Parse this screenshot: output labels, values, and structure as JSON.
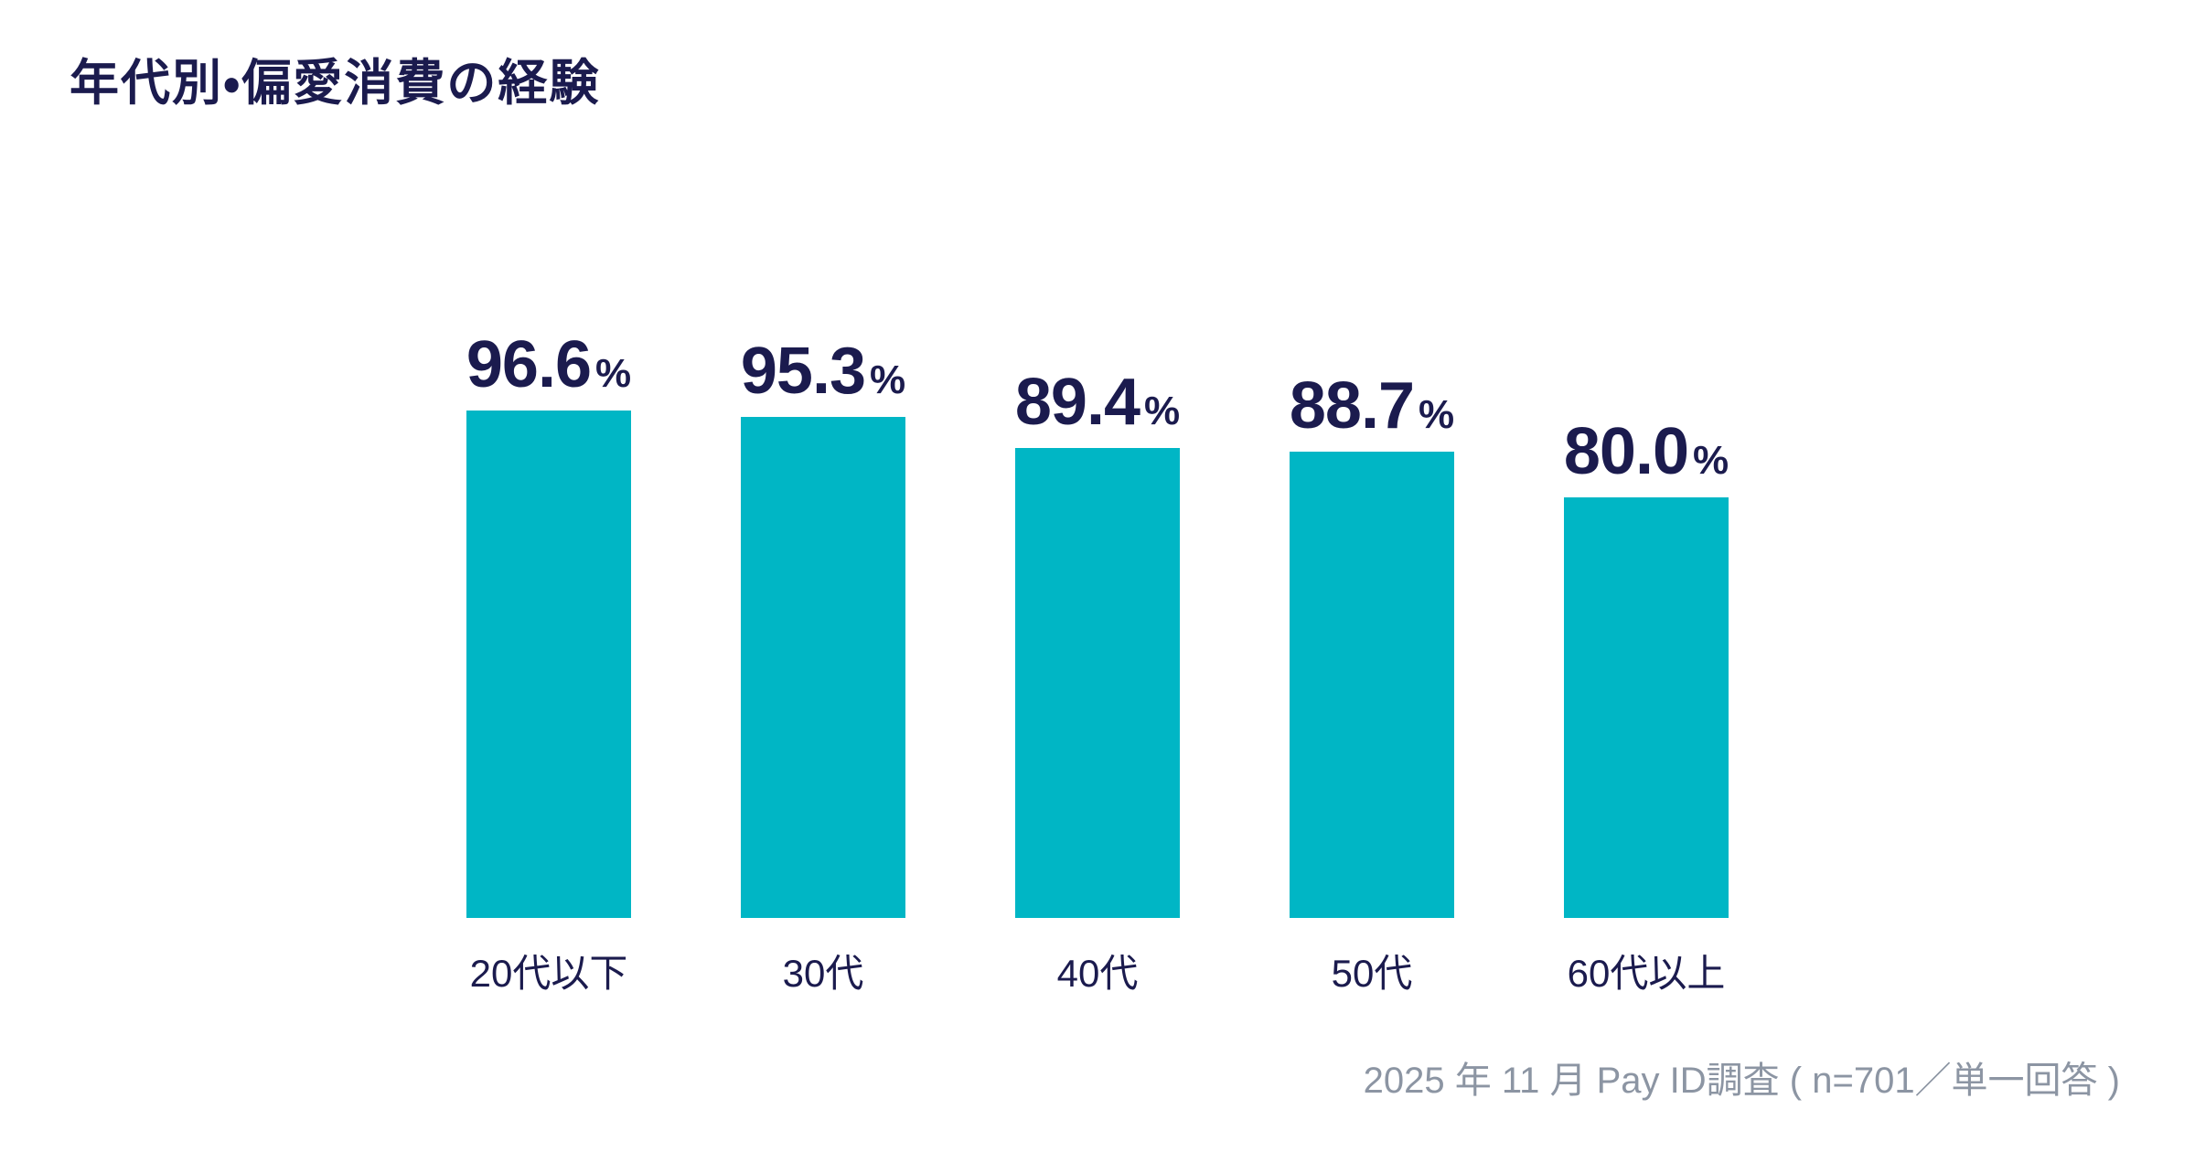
{
  "page": {
    "background": "#ffffff"
  },
  "colors": {
    "bar_teal": "#00b6c5",
    "text_navy": "#1b1b4e",
    "footer_gray": "#8c95a3",
    "background": "#ffffff"
  },
  "chart_data": {
    "type": "bar",
    "title": "年代別・偏愛消費の経験",
    "categories": [
      "20代以下",
      "30代",
      "40代",
      "50代",
      "60代以上"
    ],
    "values": [
      96.6,
      95.3,
      89.4,
      88.7,
      80.0
    ],
    "value_labels": [
      "96.6",
      "95.3",
      "89.4",
      "88.7",
      "80.0"
    ],
    "unit": "%",
    "xlabel": "",
    "ylabel": "",
    "ylim": [
      0,
      100
    ],
    "grid": false,
    "legend": "none",
    "bar_color": "#00b6c5",
    "value_label_color": "#1b1b4e",
    "category_label_color": "#1b1b4e"
  },
  "footer": {
    "source_note": "2025 年 11 月 Pay ID調査 ( n=701／単一回答 )"
  }
}
